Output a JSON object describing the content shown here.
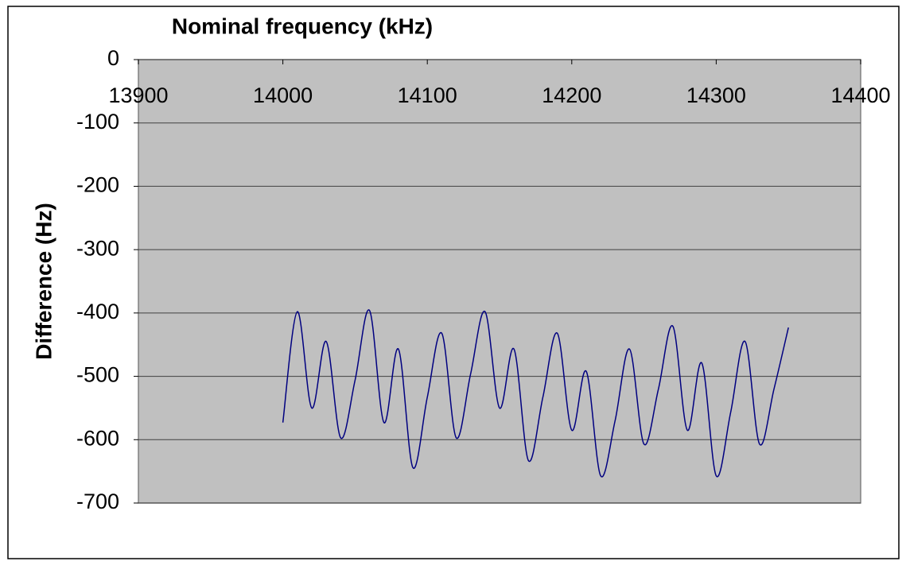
{
  "chart_data": {
    "type": "line",
    "x_label": "Nominal frequency (kHz)",
    "y_label": "Difference (Hz)",
    "x": [
      14000,
      14010,
      14020,
      14030,
      14040,
      14050,
      14060,
      14070,
      14080,
      14090,
      14100,
      14110,
      14120,
      14130,
      14140,
      14150,
      14160,
      14170,
      14180,
      14190,
      14200,
      14210,
      14220,
      14230,
      14240,
      14250,
      14260,
      14270,
      14280,
      14290,
      14300,
      14310,
      14320,
      14330,
      14340,
      14350
    ],
    "series": [
      {
        "color": "#000080",
        "values": [
          -573,
          -398,
          -550,
          -445,
          -597,
          -506,
          -396,
          -573,
          -457,
          -644,
          -533,
          -432,
          -597,
          -496,
          -398,
          -550,
          -457,
          -633,
          -533,
          -432,
          -585,
          -492,
          -657,
          -570,
          -457,
          -607,
          -520,
          -421,
          -585,
          -479,
          -657,
          -557,
          -445,
          -607,
          -520,
          -423
        ]
      }
    ],
    "xlim": [
      13900,
      14400
    ],
    "xticks": [
      13900,
      14000,
      14100,
      14200,
      14300,
      14400
    ],
    "ylim": [
      -700,
      0
    ],
    "yticks": [
      0,
      -100,
      -200,
      -300,
      -400,
      -500,
      -600,
      -700
    ],
    "grid": true,
    "plot_background": "#c0c0c0"
  }
}
